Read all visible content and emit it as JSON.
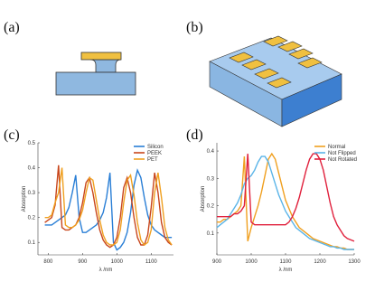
{
  "panel_labels": [
    "(a)",
    "(b)",
    "(c)",
    "(d)"
  ],
  "chart_data": [
    {
      "type": "line",
      "x_label": "λ /nm",
      "y_label": "Absorption",
      "x": [
        790,
        800,
        810,
        820,
        830,
        840,
        850,
        860,
        870,
        880,
        890,
        900,
        910,
        920,
        930,
        940,
        950,
        960,
        970,
        980,
        990,
        1000,
        1010,
        1020,
        1030,
        1040,
        1050,
        1060,
        1070,
        1080,
        1090,
        1100,
        1110,
        1120,
        1130,
        1140,
        1150,
        1160
      ],
      "xlim": [
        770,
        1165
      ],
      "xticks": [
        800,
        900,
        1000,
        1100
      ],
      "ylim": [
        0.05,
        0.5
      ],
      "yticks": [
        0.1,
        0.2,
        0.3,
        0.4,
        0.5
      ],
      "legend": "upper-right",
      "series": [
        {
          "name": "Silicon",
          "color": "#2a7fd6",
          "values": [
            0.17,
            0.17,
            0.17,
            0.18,
            0.19,
            0.2,
            0.21,
            0.24,
            0.3,
            0.37,
            0.2,
            0.14,
            0.14,
            0.15,
            0.16,
            0.17,
            0.19,
            0.22,
            0.28,
            0.38,
            0.1,
            0.07,
            0.08,
            0.1,
            0.14,
            0.22,
            0.33,
            0.39,
            0.36,
            0.28,
            0.21,
            0.17,
            0.15,
            0.14,
            0.13,
            0.12,
            0.12,
            0.12
          ]
        },
        {
          "name": "PEEK",
          "color": "#c8461c",
          "values": [
            0.18,
            0.19,
            0.2,
            0.25,
            0.41,
            0.16,
            0.15,
            0.15,
            0.16,
            0.17,
            0.2,
            0.26,
            0.34,
            0.36,
            0.3,
            0.22,
            0.15,
            0.11,
            0.09,
            0.08,
            0.09,
            0.12,
            0.2,
            0.32,
            0.36,
            0.3,
            0.2,
            0.12,
            0.09,
            0.09,
            0.13,
            0.24,
            0.38,
            0.3,
            0.18,
            0.12,
            0.1,
            0.09
          ]
        },
        {
          "name": "PET",
          "color": "#f0a020",
          "values": [
            0.2,
            0.2,
            0.21,
            0.26,
            0.3,
            0.4,
            0.17,
            0.16,
            0.16,
            0.17,
            0.19,
            0.23,
            0.3,
            0.36,
            0.35,
            0.27,
            0.19,
            0.13,
            0.1,
            0.09,
            0.09,
            0.1,
            0.15,
            0.26,
            0.35,
            0.37,
            0.29,
            0.18,
            0.11,
            0.09,
            0.1,
            0.15,
            0.3,
            0.38,
            0.28,
            0.16,
            0.11,
            0.09
          ]
        }
      ]
    },
    {
      "type": "line",
      "x_label": "λ /nm",
      "y_label": "Absorption",
      "x": [
        900,
        910,
        920,
        930,
        940,
        950,
        960,
        970,
        980,
        990,
        1000,
        1010,
        1020,
        1030,
        1040,
        1050,
        1060,
        1070,
        1080,
        1090,
        1100,
        1110,
        1120,
        1130,
        1140,
        1150,
        1160,
        1170,
        1180,
        1190,
        1200,
        1210,
        1220,
        1230,
        1240,
        1250,
        1260,
        1270,
        1280,
        1290,
        1300
      ],
      "xlim": [
        900,
        1300
      ],
      "xticks": [
        900,
        1000,
        1100,
        1200,
        1300
      ],
      "ylim": [
        0.02,
        0.43
      ],
      "yticks": [
        0.1,
        0.2,
        0.3,
        0.4
      ],
      "legend": "upper-right",
      "series": [
        {
          "name": "Normal",
          "color": "#f0a020",
          "values": [
            0.14,
            0.14,
            0.15,
            0.15,
            0.16,
            0.17,
            0.18,
            0.2,
            0.38,
            0.07,
            0.12,
            0.16,
            0.2,
            0.25,
            0.31,
            0.37,
            0.39,
            0.37,
            0.32,
            0.27,
            0.22,
            0.19,
            0.16,
            0.14,
            0.12,
            0.11,
            0.1,
            0.09,
            0.08,
            0.075,
            0.07,
            0.065,
            0.06,
            0.055,
            0.05,
            0.05,
            0.045,
            0.045,
            0.04,
            0.04,
            0.04
          ]
        },
        {
          "name": "Not Flipped",
          "color": "#5ab4e8",
          "values": [
            0.12,
            0.13,
            0.14,
            0.15,
            0.17,
            0.19,
            0.21,
            0.24,
            0.28,
            0.3,
            0.31,
            0.33,
            0.36,
            0.38,
            0.38,
            0.36,
            0.32,
            0.28,
            0.24,
            0.21,
            0.18,
            0.16,
            0.14,
            0.12,
            0.11,
            0.1,
            0.09,
            0.08,
            0.075,
            0.07,
            0.065,
            0.06,
            0.055,
            0.05,
            0.05,
            0.045,
            0.045,
            0.04,
            0.04,
            0.04,
            0.04
          ]
        },
        {
          "name": "Not Rotated",
          "color": "#e0203c",
          "values": [
            0.16,
            0.16,
            0.16,
            0.16,
            0.16,
            0.17,
            0.17,
            0.18,
            0.2,
            0.39,
            0.14,
            0.13,
            0.13,
            0.13,
            0.13,
            0.13,
            0.13,
            0.13,
            0.13,
            0.13,
            0.13,
            0.14,
            0.16,
            0.19,
            0.23,
            0.28,
            0.33,
            0.37,
            0.39,
            0.39,
            0.37,
            0.33,
            0.27,
            0.21,
            0.16,
            0.13,
            0.11,
            0.09,
            0.08,
            0.075,
            0.07
          ]
        }
      ]
    }
  ]
}
